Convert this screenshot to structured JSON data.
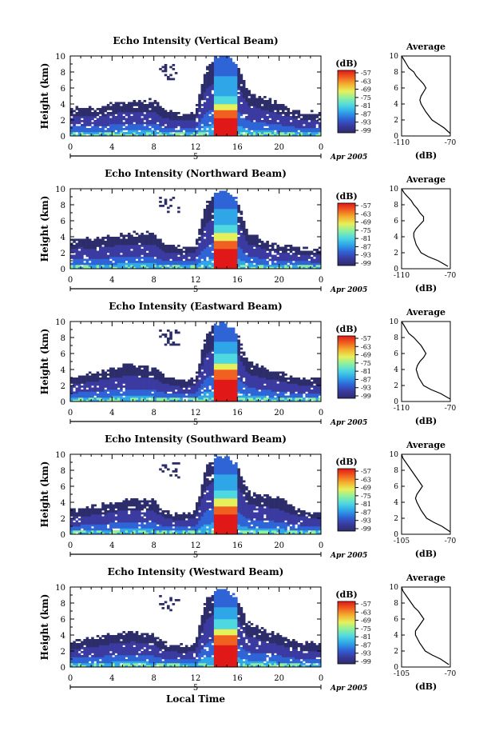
{
  "colors": {
    "scale": [
      "#2d2d6b",
      "#3a3aa0",
      "#2f64d6",
      "#2fa6e8",
      "#4fd8e0",
      "#8ef0a0",
      "#e6f05a",
      "#f5b030",
      "#f06020",
      "#e01818"
    ],
    "axis": "#000000",
    "background": "#ffffff"
  },
  "shared": {
    "ylabel": "Height (km)",
    "yticks": [
      "0",
      "2",
      "4",
      "6",
      "8",
      "10"
    ],
    "xticks": [
      "0",
      "4",
      "8",
      "12",
      "16",
      "20",
      "0"
    ],
    "date_day": "5",
    "date_label": "Apr 2005",
    "colorbar_unit": "(dB)",
    "colorbar_ticks": [
      "-57",
      "-63",
      "-69",
      "-75",
      "-81",
      "-87",
      "-93",
      "-99"
    ],
    "avg_title": "Average",
    "avg_xlabel": "(dB)",
    "xlabel_bottom": "Local Time"
  },
  "panels": [
    {
      "title": "Echo Intensity (Vertical Beam)",
      "avg_xticks": [
        "-110",
        "-70"
      ]
    },
    {
      "title": "Echo Intensity (Northward Beam)",
      "avg_xticks": [
        "-110",
        "-70"
      ]
    },
    {
      "title": "Echo Intensity (Eastward Beam)",
      "avg_xticks": [
        "-110",
        "-70"
      ]
    },
    {
      "title": "Echo Intensity (Southward Beam)",
      "avg_xticks": [
        "-105",
        "-70"
      ]
    },
    {
      "title": "Echo Intensity (Westward Beam)",
      "avg_xticks": [
        "-105",
        "-70"
      ]
    }
  ],
  "chart_data": [
    {
      "type": "heatmap",
      "title": "Echo Intensity (Vertical Beam)",
      "xlabel": "",
      "ylabel": "Height (km)",
      "xlim": [
        0,
        24
      ],
      "ylim": [
        0,
        10
      ],
      "colorbar": {
        "label": "(dB)",
        "range": [
          -99,
          -57
        ]
      },
      "echo_layer_top_km": [
        3.5,
        3.5,
        3.4,
        3.6,
        4.0,
        4.2,
        4.3,
        4.4,
        4.4,
        3.2,
        2.8,
        2.7,
        3.0,
        8.5,
        10.0,
        10.0,
        9.0,
        5.5,
        5.0,
        4.5,
        4.0,
        3.5,
        3.0,
        3.0
      ],
      "core": {
        "x_range": [
          13.8,
          16.0
        ],
        "max_height_km": 5.0,
        "peak_dB": -57
      },
      "average_profile": {
        "x": [
          -110,
          -108,
          -106,
          -104,
          -100,
          -98,
          -95,
          -92,
          -90,
          -92,
          -94,
          -95,
          -94,
          -90,
          -85,
          -80,
          -75,
          -70
        ],
        "y": [
          10,
          9.5,
          9,
          8.5,
          8,
          7.5,
          7,
          6.5,
          6,
          5.5,
          5,
          4.5,
          4,
          3,
          2,
          1.5,
          1,
          0.3
        ],
        "xlim": [
          -110,
          -70
        ],
        "ylim": [
          0,
          10
        ]
      }
    },
    {
      "type": "heatmap",
      "title": "Echo Intensity (Northward Beam)",
      "xlabel": "",
      "ylabel": "Height (km)",
      "xlim": [
        0,
        24
      ],
      "ylim": [
        0,
        10
      ],
      "colorbar": {
        "label": "(dB)",
        "range": [
          -99,
          -57
        ]
      },
      "echo_layer_top_km": [
        3.5,
        3.8,
        3.6,
        3.8,
        4.0,
        4.3,
        4.4,
        4.4,
        4.4,
        3.0,
        2.8,
        2.6,
        3.0,
        8.0,
        9.5,
        9.8,
        8.5,
        4.5,
        4.0,
        3.2,
        3.0,
        2.8,
        2.6,
        2.5
      ],
      "core": {
        "x_range": [
          13.8,
          16.0
        ],
        "max_height_km": 5.5,
        "peak_dB": -57
      },
      "average_profile": {
        "x": [
          -110,
          -108,
          -105,
          -102,
          -100,
          -97,
          -95,
          -92,
          -92,
          -95,
          -98,
          -100,
          -100,
          -98,
          -94,
          -88,
          -80,
          -72
        ],
        "y": [
          10,
          9.5,
          9,
          8.5,
          8,
          7.5,
          7,
          6.5,
          6,
          5.5,
          5,
          4.5,
          4,
          3,
          2,
          1.5,
          1,
          0.3
        ],
        "xlim": [
          -110,
          -70
        ],
        "ylim": [
          0,
          10
        ]
      }
    },
    {
      "type": "heatmap",
      "title": "Echo Intensity (Eastward Beam)",
      "xlabel": "",
      "ylabel": "Height (km)",
      "xlim": [
        0,
        24
      ],
      "ylim": [
        0,
        10
      ],
      "colorbar": {
        "label": "(dB)",
        "range": [
          -99,
          -57
        ]
      },
      "echo_layer_top_km": [
        3.0,
        3.3,
        3.5,
        3.8,
        4.2,
        4.5,
        4.6,
        4.4,
        4.2,
        3.2,
        2.8,
        2.6,
        3.0,
        8.5,
        9.8,
        9.8,
        8.5,
        5.0,
        4.5,
        4.0,
        3.8,
        3.2,
        3.0,
        3.0
      ],
      "core": {
        "x_range": [
          13.8,
          16.0
        ],
        "max_height_km": 6.0,
        "peak_dB": -57
      },
      "average_profile": {
        "x": [
          -110,
          -108,
          -106,
          -104,
          -100,
          -97,
          -94,
          -92,
          -90,
          -92,
          -95,
          -97,
          -98,
          -96,
          -92,
          -86,
          -78,
          -70
        ],
        "y": [
          10,
          9.5,
          9,
          8.5,
          8,
          7.5,
          7,
          6.5,
          6,
          5.5,
          5,
          4.5,
          4,
          3,
          2,
          1.5,
          1,
          0.3
        ],
        "xlim": [
          -110,
          -70
        ],
        "ylim": [
          0,
          10
        ]
      }
    },
    {
      "type": "heatmap",
      "title": "Echo Intensity (Southward Beam)",
      "xlabel": "",
      "ylabel": "Height (km)",
      "xlim": [
        0,
        24
      ],
      "ylim": [
        0,
        10
      ],
      "colorbar": {
        "label": "(dB)",
        "range": [
          -99,
          -57
        ]
      },
      "echo_layer_top_km": [
        3.0,
        3.2,
        3.4,
        3.6,
        4.0,
        4.2,
        4.4,
        4.4,
        4.2,
        3.0,
        2.6,
        2.6,
        3.0,
        8.5,
        9.8,
        9.8,
        8.5,
        5.5,
        5.0,
        4.8,
        4.5,
        3.8,
        3.2,
        3.0
      ],
      "core": {
        "x_range": [
          13.8,
          16.0
        ],
        "max_height_km": 5.5,
        "peak_dB": -57
      },
      "average_profile": {
        "x": [
          -105,
          -104,
          -102,
          -100,
          -98,
          -96,
          -94,
          -92,
          -90,
          -92,
          -94,
          -95,
          -94,
          -91,
          -87,
          -82,
          -76,
          -70
        ],
        "y": [
          10,
          9.5,
          9,
          8.5,
          8,
          7.5,
          7,
          6.5,
          6,
          5.5,
          5,
          4.5,
          4,
          3,
          2,
          1.5,
          1,
          0.3
        ],
        "xlim": [
          -105,
          -70
        ],
        "ylim": [
          0,
          10
        ]
      }
    },
    {
      "type": "heatmap",
      "title": "Echo Intensity (Westward Beam)",
      "xlabel": "Local Time",
      "ylabel": "Height (km)",
      "xlim": [
        0,
        24
      ],
      "ylim": [
        0,
        10
      ],
      "colorbar": {
        "label": "(dB)",
        "range": [
          -99,
          -57
        ]
      },
      "echo_layer_top_km": [
        3.2,
        3.4,
        3.6,
        3.8,
        4.2,
        4.4,
        4.5,
        4.3,
        4.0,
        3.0,
        2.7,
        2.6,
        3.0,
        8.5,
        9.8,
        9.8,
        8.5,
        5.5,
        5.0,
        4.5,
        4.0,
        3.5,
        3.0,
        3.0
      ],
      "core": {
        "x_range": [
          13.8,
          16.0
        ],
        "max_height_km": 6.0,
        "peak_dB": -57
      },
      "average_profile": {
        "x": [
          -105,
          -104,
          -102,
          -100,
          -98,
          -96,
          -93,
          -91,
          -89,
          -91,
          -93,
          -95,
          -95,
          -92,
          -88,
          -83,
          -77,
          -71
        ],
        "y": [
          10,
          9.5,
          9,
          8.5,
          8,
          7.5,
          7,
          6.5,
          6,
          5.5,
          5,
          4.5,
          4,
          3,
          2,
          1.5,
          1,
          0.3
        ],
        "xlim": [
          -105,
          -70
        ],
        "ylim": [
          0,
          10
        ]
      }
    }
  ]
}
